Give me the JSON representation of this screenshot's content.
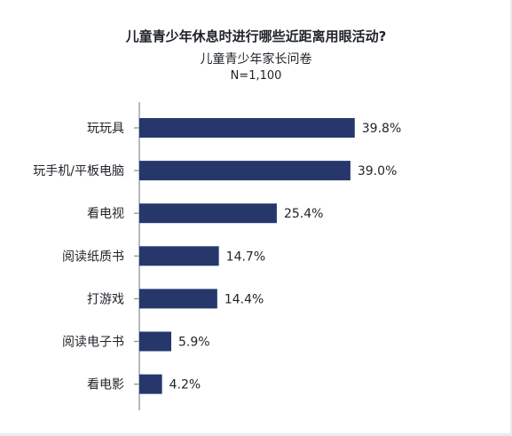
{
  "chart_data": {
    "type": "bar",
    "orientation": "horizontal",
    "title": "儿童青少年休息时进行哪些近距离用眼活动?",
    "subtitle": "儿童青少年家长问卷",
    "sample_size": "N=1,100",
    "categories": [
      "玩玩具",
      "玩手机/平板电脑",
      "看电视",
      "阅读纸质书",
      "打游戏",
      "阅读电子书",
      "看电影"
    ],
    "values": [
      39.8,
      39.0,
      25.4,
      14.7,
      14.4,
      5.9,
      4.2
    ],
    "value_labels": [
      "39.8%",
      "39.0%",
      "25.4%",
      "14.7%",
      "14.4%",
      "5.9%",
      "4.2%"
    ],
    "unit": "%",
    "xlim": [
      0,
      40
    ],
    "grid": false,
    "legend": "none",
    "bar_color": "#26386b",
    "axis_color": "#8f969c"
  }
}
